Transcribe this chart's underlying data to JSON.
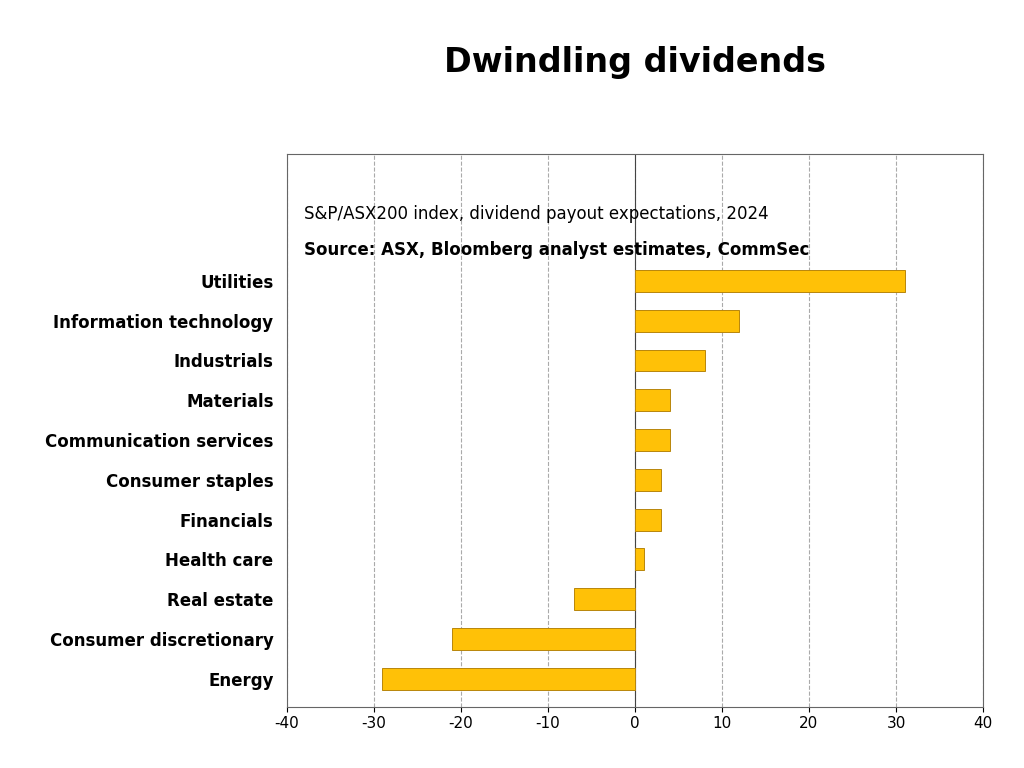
{
  "title": "Dwindling dividends",
  "subtitle": "S&P/ASX200 index, dividend payout expectations, 2024",
  "source": "Source: ASX, Bloomberg analyst estimates, CommSec",
  "categories": [
    "Utilities",
    "Information technology",
    "Industrials",
    "Materials",
    "Communication services",
    "Consumer staples",
    "Financials",
    "Health care",
    "Real estate",
    "Consumer discretionary",
    "Energy"
  ],
  "values": [
    31,
    12,
    8,
    4,
    4,
    3,
    3,
    1,
    -7,
    -21,
    -29
  ],
  "bar_color": "#FFC107",
  "edge_color": "#B8860B",
  "background_color": "#ffffff",
  "xlim": [
    -40,
    40
  ],
  "xticks": [
    -40,
    -30,
    -20,
    -10,
    0,
    10,
    20,
    30,
    40
  ],
  "title_fontsize": 24,
  "subtitle_fontsize": 12,
  "source_fontsize": 12,
  "label_fontsize": 12,
  "tick_fontsize": 11
}
